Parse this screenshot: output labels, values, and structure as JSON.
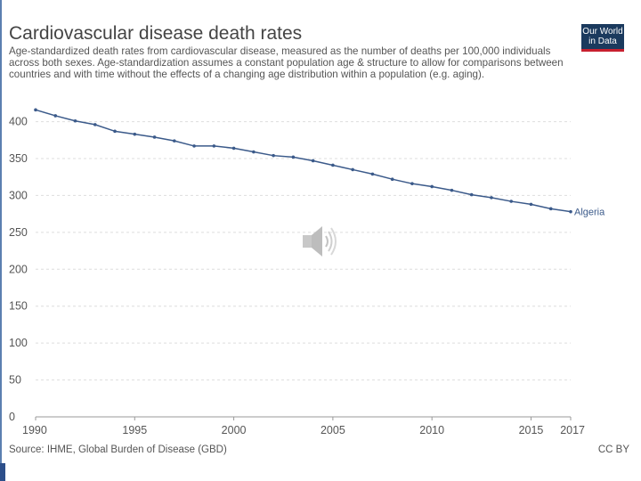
{
  "header": {
    "title": "Cardiovascular disease death rates",
    "subtitle": "Age-standardized death rates from cardiovascular disease, measured as the number of deaths per 100,000 individuals across both sexes. Age-standardization assumes a constant population age & structure to allow for comparisons between countries and with time without the effects of a changing age distribution within a population (e.g. aging).",
    "logo_line1": "Our World",
    "logo_line2": "in Data"
  },
  "footer": {
    "source": "Source: IHME, Global Burden of Disease (GBD)",
    "license": "CC BY"
  },
  "icons": {
    "speaker": "speaker-icon"
  },
  "colors": {
    "series": "#3b5a8a",
    "grid": "#dddddd",
    "logo_bg": "#1b3a5e",
    "logo_accent": "#c8202f"
  },
  "chart_data": {
    "type": "line",
    "title": "Cardiovascular disease death rates",
    "xlabel": "",
    "ylabel": "",
    "x": [
      1990,
      1991,
      1992,
      1993,
      1994,
      1995,
      1996,
      1997,
      1998,
      1999,
      2000,
      2001,
      2002,
      2003,
      2004,
      2005,
      2006,
      2007,
      2008,
      2009,
      2010,
      2011,
      2012,
      2013,
      2014,
      2015,
      2016,
      2017
    ],
    "series": [
      {
        "name": "Algeria",
        "values": [
          416,
          408,
          401,
          396,
          387,
          383,
          379,
          374,
          367,
          367,
          364,
          359,
          354,
          352,
          347,
          341,
          335,
          329,
          322,
          316,
          312,
          307,
          301,
          297,
          292,
          288,
          282,
          278
        ]
      }
    ],
    "xlim": [
      1990,
      2017
    ],
    "ylim": [
      0,
      420
    ],
    "x_ticks": [
      "1990",
      "1995",
      "2000",
      "2005",
      "2010",
      "2015",
      "2017"
    ],
    "y_ticks": [
      "0",
      "50",
      "100",
      "150",
      "200",
      "250",
      "300",
      "350",
      "400"
    ],
    "grid": "horizontal dashed",
    "legend": "inline label at line end"
  }
}
